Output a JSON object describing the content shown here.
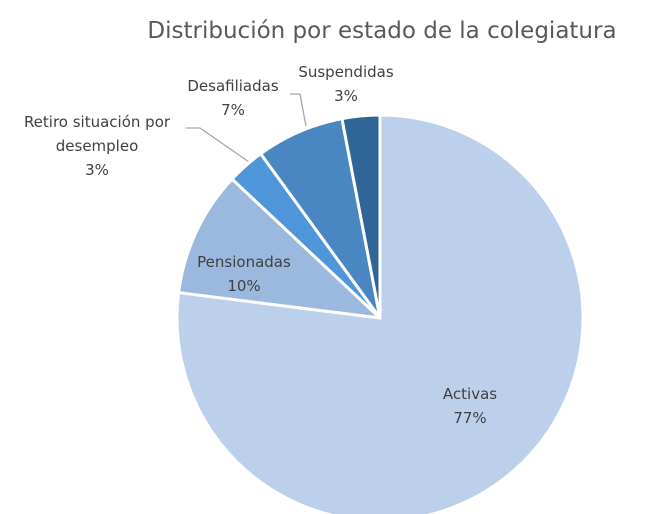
{
  "chart_data": {
    "type": "pie",
    "title": "Distribución por estado de la colegiatura",
    "categories": [
      "Activas",
      "Pensionadas",
      "Retiro situación por desempleo",
      "Desafiliadas",
      "Suspendidas"
    ],
    "values": [
      77,
      10,
      3,
      7,
      3
    ],
    "value_labels": [
      "77%",
      "10%",
      "3%",
      "7%",
      "3%"
    ],
    "colors": [
      "#bcd0eb",
      "#9bb9df",
      "#4f95da",
      "#4a87c2",
      "#2f6597"
    ]
  }
}
